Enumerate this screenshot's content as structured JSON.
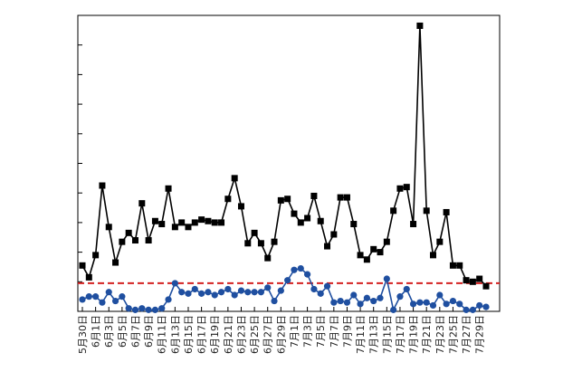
{
  "chart_data": {
    "type": "line",
    "title": "",
    "xlabel": "",
    "ylabel": "",
    "x_tick_labels": [
      "5月30日",
      "6月1日",
      "6月3日",
      "6月5日",
      "6月7日",
      "6月9日",
      "6月11日",
      "6月13日",
      "6月15日",
      "6月17日",
      "6月19日",
      "6月21日",
      "6月23日",
      "6月25日",
      "6月27日",
      "6月29日",
      "7月1日",
      "7月3日",
      "7月5日",
      "7月7日",
      "7月9日",
      "7月11日",
      "7月13日",
      "7月15日",
      "7月17日",
      "7月19日",
      "7月21日",
      "7月23日",
      "7月25日",
      "7月27日",
      "7月29日"
    ],
    "ylim": [
      0,
      1
    ],
    "grid": false,
    "legend": "none",
    "threshold": {
      "value": 0.095,
      "color": "#d42020"
    },
    "series": [
      {
        "color": "#000000",
        "marker": "square",
        "values": [
          0.155,
          0.115,
          0.19,
          0.425,
          0.285,
          0.165,
          0.235,
          0.265,
          0.24,
          0.365,
          0.24,
          0.305,
          0.295,
          0.415,
          0.285,
          0.3,
          0.285,
          0.3,
          0.31,
          0.305,
          0.3,
          0.3,
          0.38,
          0.45,
          0.355,
          0.23,
          0.265,
          0.23,
          0.18,
          0.235,
          0.375,
          0.38,
          0.33,
          0.3,
          0.315,
          0.39,
          0.305,
          0.22,
          0.26,
          0.385,
          0.385,
          0.295,
          0.19,
          0.175,
          0.21,
          0.2,
          0.235,
          0.34,
          0.415,
          0.42,
          0.295,
          0.965,
          0.34,
          0.19,
          0.235,
          0.335,
          0.155,
          0.155,
          0.105,
          0.1,
          0.11,
          0.085
        ]
      },
      {
        "color": "#1f4fa0",
        "marker": "circle",
        "values": [
          0.04,
          0.05,
          0.05,
          0.03,
          0.065,
          0.035,
          0.05,
          0.01,
          0.005,
          0.01,
          0.005,
          0.005,
          0.01,
          0.04,
          0.095,
          0.065,
          0.06,
          0.075,
          0.06,
          0.065,
          0.055,
          0.065,
          0.075,
          0.055,
          0.07,
          0.065,
          0.065,
          0.065,
          0.08,
          0.035,
          0.07,
          0.105,
          0.14,
          0.145,
          0.125,
          0.075,
          0.06,
          0.085,
          0.03,
          0.035,
          0.03,
          0.055,
          0.025,
          0.045,
          0.035,
          0.045,
          0.11,
          0.005,
          0.05,
          0.075,
          0.025,
          0.03,
          0.03,
          0.02,
          0.055,
          0.025,
          0.035,
          0.025,
          0.005,
          0.005,
          0.02,
          0.015
        ]
      }
    ]
  }
}
